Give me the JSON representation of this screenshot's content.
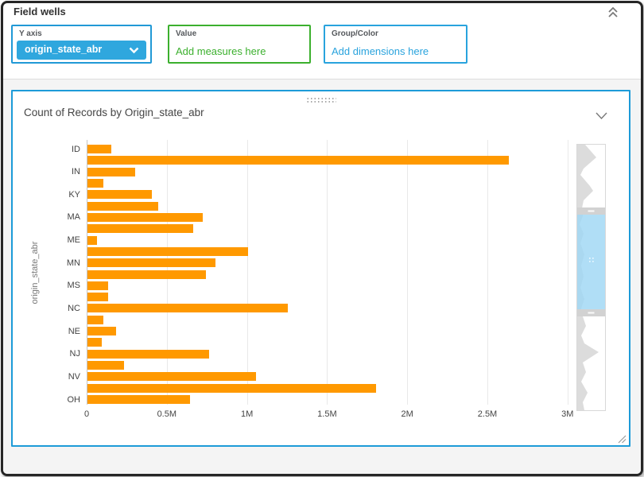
{
  "colors": {
    "accent_blue": "#2199d6",
    "dropdown_blue": "#2fa7de",
    "well_green": "#3cb02e",
    "link_blue": "#29a3dd",
    "bar_orange": "#ff9900",
    "card_border": "#1d9bd8",
    "minimap_selection": "#9fd7f4"
  },
  "field_wells": {
    "title": "Field wells",
    "collapse_icon": "double-chevron-up",
    "y_axis": {
      "label": "Y axis",
      "value": "origin_state_abr"
    },
    "value": {
      "label": "Value",
      "placeholder": "Add measures here"
    },
    "group_color": {
      "label": "Group/Color",
      "placeholder": "Add dimensions here"
    }
  },
  "visual": {
    "title": "Count of Records by Origin_state_abr",
    "menu_icon": "chevron-down"
  },
  "chart_data": {
    "type": "bar",
    "orientation": "horizontal",
    "title": "Count of Records by Origin_state_abr",
    "xlabel": "",
    "ylabel": "origin_state_abr",
    "x_tick_labels": [
      "0",
      "0.5M",
      "1M",
      "1.5M",
      "2M",
      "2.5M",
      "3M"
    ],
    "x_tick_values_millions": [
      0,
      0.5,
      1,
      1.5,
      2,
      2.5,
      3
    ],
    "xlim_millions": [
      0,
      3.13
    ],
    "grid": true,
    "legend": "none",
    "bar_color": "#ff9900",
    "y_tick_labels": [
      "ID",
      "IN",
      "KY",
      "MA",
      "ME",
      "MN",
      "MS",
      "NC",
      "NE",
      "NJ",
      "NV",
      "OH"
    ],
    "labels_shown_every_other_bar": true,
    "bars_in_millions": [
      0.15,
      2.63,
      0.3,
      0.1,
      0.4,
      0.44,
      0.72,
      0.66,
      0.06,
      1.0,
      0.8,
      0.74,
      0.13,
      0.13,
      1.25,
      0.1,
      0.18,
      0.09,
      0.76,
      0.23,
      1.05,
      1.8,
      0.64
    ]
  }
}
